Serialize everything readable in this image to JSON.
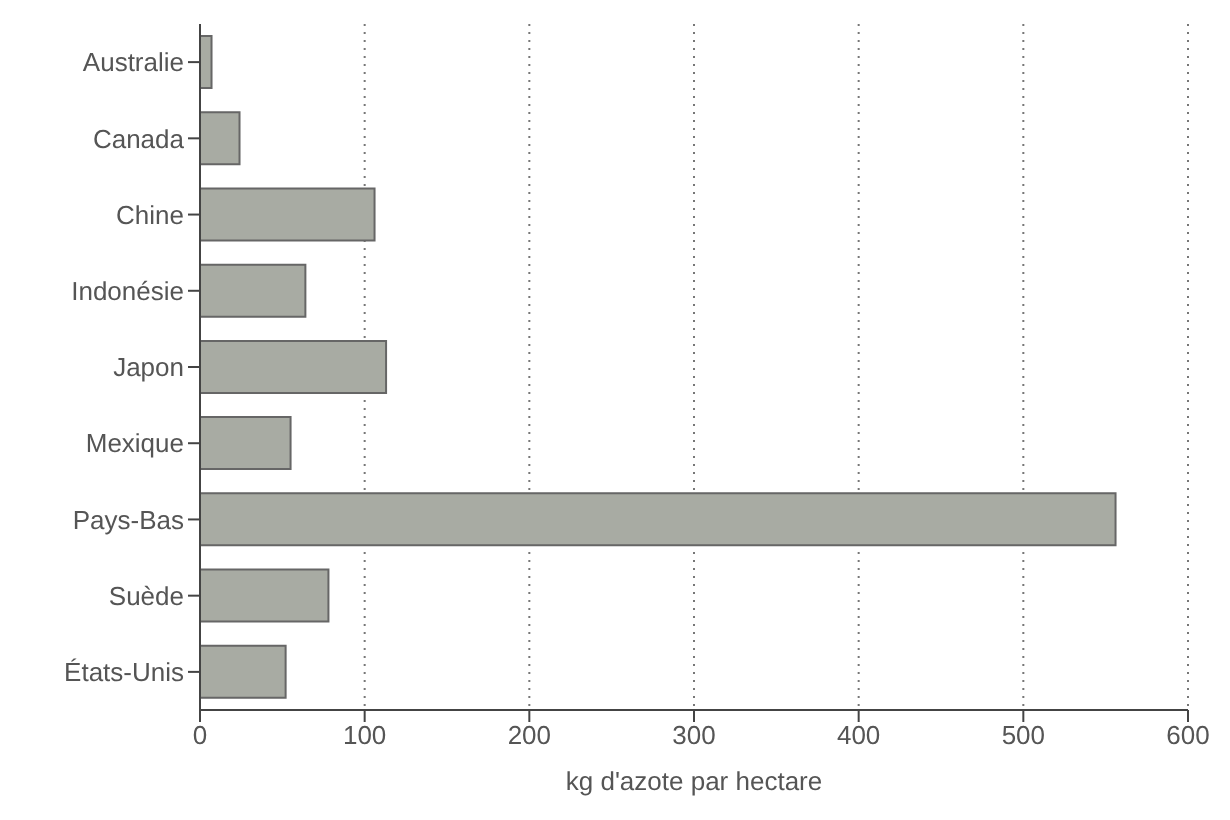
{
  "chart_data": {
    "type": "bar",
    "orientation": "horizontal",
    "xlabel": "kg d'azote par hectare",
    "categories": [
      "Australie",
      "Canada",
      "Chine",
      "Indonésie",
      "Japon",
      "Mexique",
      "Pays-Bas",
      "Suède",
      "États-Unis"
    ],
    "values": [
      7,
      24,
      106,
      64,
      113,
      55,
      556,
      78,
      52
    ],
    "color": "#a8aba3",
    "xlim": [
      0,
      600
    ],
    "xticks": [
      0,
      100,
      200,
      300,
      400,
      500,
      600
    ],
    "grid": "x"
  }
}
